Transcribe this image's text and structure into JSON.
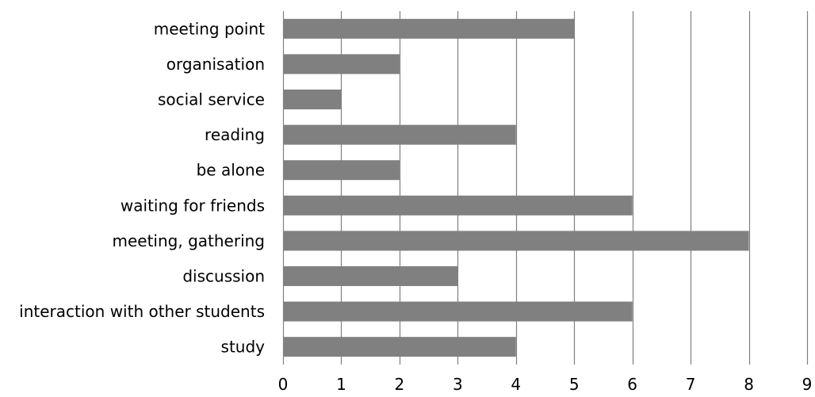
{
  "chart_data": {
    "type": "bar",
    "orientation": "horizontal",
    "title": "",
    "xlabel": "",
    "ylabel": "",
    "categories": [
      "meeting point",
      "organisation",
      "social service",
      "reading",
      "be alone",
      "waiting for friends",
      "meeting, gathering",
      "discussion",
      "interaction with other students",
      "study"
    ],
    "values": [
      5,
      2,
      1,
      4,
      2,
      6,
      8,
      3,
      6,
      4
    ],
    "xlim": [
      0,
      9
    ],
    "xticks": [
      "0",
      "1",
      "2",
      "3",
      "4",
      "5",
      "6",
      "7",
      "8",
      "9"
    ],
    "grid": "vertical",
    "legend": "none",
    "colors": {
      "bar": "#808080",
      "grid": "#808080",
      "text": "#000000"
    }
  }
}
